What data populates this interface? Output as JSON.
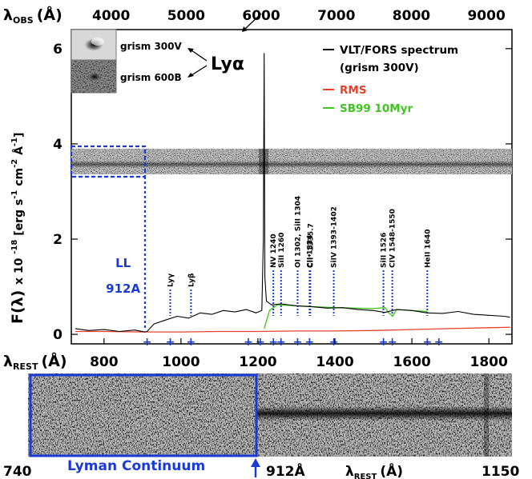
{
  "chart_data": {
    "type": "line",
    "top_axis": {
      "label_main": "λ",
      "label_sub": "OBS",
      "label_unit": "(Å)",
      "ticks": [
        {
          "value": 4000,
          "label": "4000"
        },
        {
          "value": 5000,
          "label": "5000"
        },
        {
          "value": 6000,
          "label": "6000"
        },
        {
          "value": 7000,
          "label": "7000"
        },
        {
          "value": 8000,
          "label": "8000"
        },
        {
          "value": 9000,
          "label": "9000"
        }
      ],
      "range": [
        3470,
        9340
      ]
    },
    "bottom_axis": {
      "label_main": "λ",
      "label_sub": "REST",
      "label_unit": "(Å)",
      "ticks": [
        {
          "value": 800,
          "label": "800"
        },
        {
          "value": 1000,
          "label": "1000"
        },
        {
          "value": 1200,
          "label": "1200"
        },
        {
          "value": 1400,
          "label": "1400"
        },
        {
          "value": 1600,
          "label": "1600"
        },
        {
          "value": 1800,
          "label": "1800"
        }
      ],
      "range": [
        715,
        1860
      ]
    },
    "y_axis": {
      "label_parts": [
        "F(λ) ",
        "x 10 ",
        "-18",
        " [erg s",
        "-1",
        " cm",
        "-2",
        " Å",
        "-1",
        "]"
      ],
      "ticks": [
        {
          "value": 0,
          "label": "0"
        },
        {
          "value": 2,
          "label": "2"
        },
        {
          "value": 4,
          "label": "4"
        },
        {
          "value": 6,
          "label": "6"
        }
      ],
      "range": [
        -0.2,
        6.4
      ]
    },
    "series": [
      {
        "name": "VLT/FORS spectrum",
        "name2": "(grism 300V)",
        "color": "#000000",
        "x": [
          725,
          760,
          800,
          840,
          880,
          905,
          912,
          930,
          960,
          990,
          1020,
          1050,
          1080,
          1110,
          1140,
          1170,
          1195,
          1210,
          1214,
          1216,
          1218,
          1222,
          1235,
          1260,
          1300,
          1340,
          1380,
          1420,
          1460,
          1500,
          1530,
          1560,
          1600,
          1640,
          1680,
          1720,
          1760,
          1800,
          1840,
          1855
        ],
        "y": [
          0.12,
          0.08,
          0.1,
          0.06,
          0.09,
          0.05,
          0.06,
          0.22,
          0.3,
          0.38,
          0.34,
          0.45,
          0.42,
          0.5,
          0.47,
          0.52,
          0.45,
          0.5,
          2.0,
          5.9,
          1.2,
          0.7,
          0.62,
          0.64,
          0.6,
          0.58,
          0.55,
          0.56,
          0.52,
          0.5,
          0.46,
          0.52,
          0.5,
          0.45,
          0.44,
          0.48,
          0.42,
          0.4,
          0.38,
          0.36
        ]
      },
      {
        "name": "RMS",
        "color": "#e8402a",
        "x": [
          725,
          800,
          900,
          1000,
          1100,
          1200,
          1300,
          1400,
          1500,
          1600,
          1700,
          1800,
          1855
        ],
        "y": [
          0.06,
          0.06,
          0.05,
          0.05,
          0.06,
          0.06,
          0.07,
          0.07,
          0.08,
          0.1,
          0.12,
          0.14,
          0.15
        ]
      },
      {
        "name": "SB99 10Myr",
        "color": "#3cc51a",
        "x": [
          1216,
          1230,
          1250,
          1300,
          1350,
          1400,
          1450,
          1500,
          1530,
          1540,
          1550,
          1560,
          1600,
          1640
        ],
        "y": [
          0.12,
          0.5,
          0.62,
          0.6,
          0.58,
          0.56,
          0.55,
          0.54,
          0.56,
          0.45,
          0.38,
          0.52,
          0.5,
          0.48
        ]
      }
    ],
    "legend_position": "top-right",
    "lines": [
      {
        "label": "LL",
        "label2": "912A",
        "rest": 912
      },
      {
        "label": "Lyγ",
        "rest": 972
      },
      {
        "label": "Lyβ",
        "rest": 1026
      },
      {
        "label": "NV 1240",
        "rest": 1240
      },
      {
        "label": "SiII 1260",
        "rest": 1260
      },
      {
        "label": "OI 1302, SiII 1304",
        "rest": 1303
      },
      {
        "label": "CII 1334",
        "rest": 1334
      },
      {
        "label": "CII* 1335.7",
        "rest": 1336
      },
      {
        "label": "SiIV 1393-1402",
        "rest": 1397
      },
      {
        "label": "SiII 1526",
        "rest": 1526
      },
      {
        "label": "CIV 1548-1550",
        "rest": 1549
      },
      {
        "label": "HeII 1640",
        "rest": 1640
      }
    ],
    "line_markers_rest": [
      912,
      972,
      1026,
      1175,
      1206,
      1240,
      1260,
      1303,
      1334,
      1397,
      1526,
      1549,
      1640,
      1670
    ]
  },
  "annotations": {
    "lya": "Lyα",
    "grism_300v": "grism 300V",
    "grism_600b": "grism 600B",
    "bottom_left_value": "740",
    "lyman_continuum": "Lyman Continuum",
    "bottom_912": "912Å",
    "bottom_right_value": "1150"
  },
  "colors": {
    "spectrum": "#000000",
    "rms": "#e8402a",
    "sb99": "#3cc51a",
    "annotation_blue": "#1a3ad6"
  }
}
